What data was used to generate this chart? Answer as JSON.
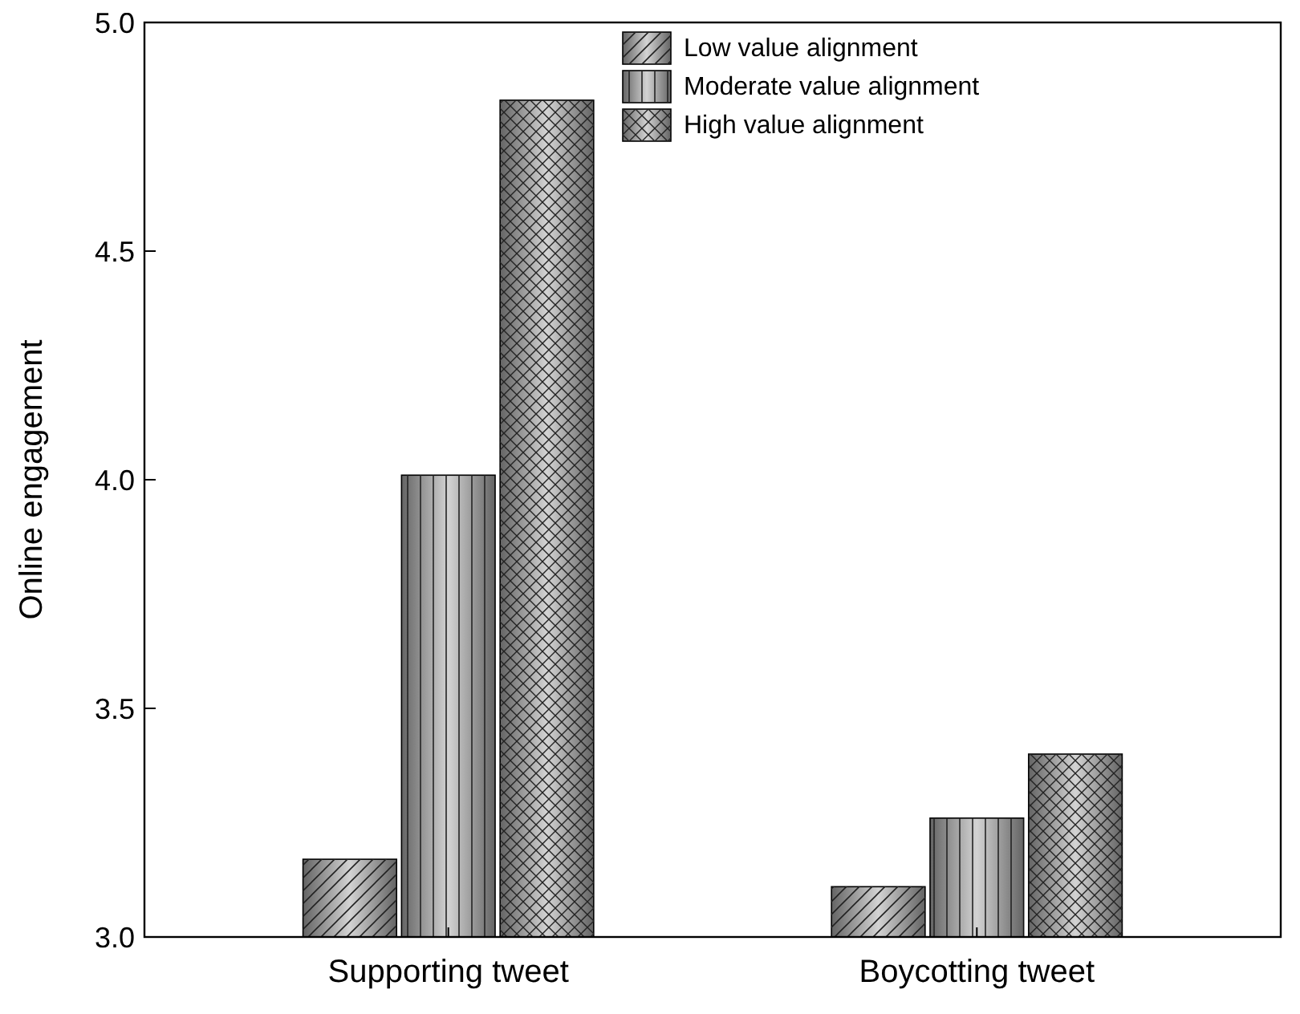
{
  "chart_data": {
    "type": "bar",
    "ylabel": "Online engagement",
    "categories": [
      "Supporting tweet",
      "Boycotting tweet"
    ],
    "series": [
      {
        "name": "Low value alignment",
        "color": "#999999",
        "values": [
          3.17,
          3.11
        ]
      },
      {
        "name": "Moderate value alignment",
        "color": "#999999",
        "values": [
          4.01,
          3.26
        ]
      },
      {
        "name": "High value alignment",
        "color": "#999999",
        "values": [
          4.83,
          3.4
        ]
      }
    ],
    "ylim": [
      3.0,
      5.0
    ],
    "yticks": [
      {
        "value": 3.0,
        "label": "3.0"
      },
      {
        "value": 3.5,
        "label": "3.5"
      },
      {
        "value": 4.0,
        "label": "4.0"
      },
      {
        "value": 4.5,
        "label": "4.5"
      },
      {
        "value": 5.0,
        "label": "5.0"
      }
    ],
    "legend": "top right",
    "grid": false
  }
}
